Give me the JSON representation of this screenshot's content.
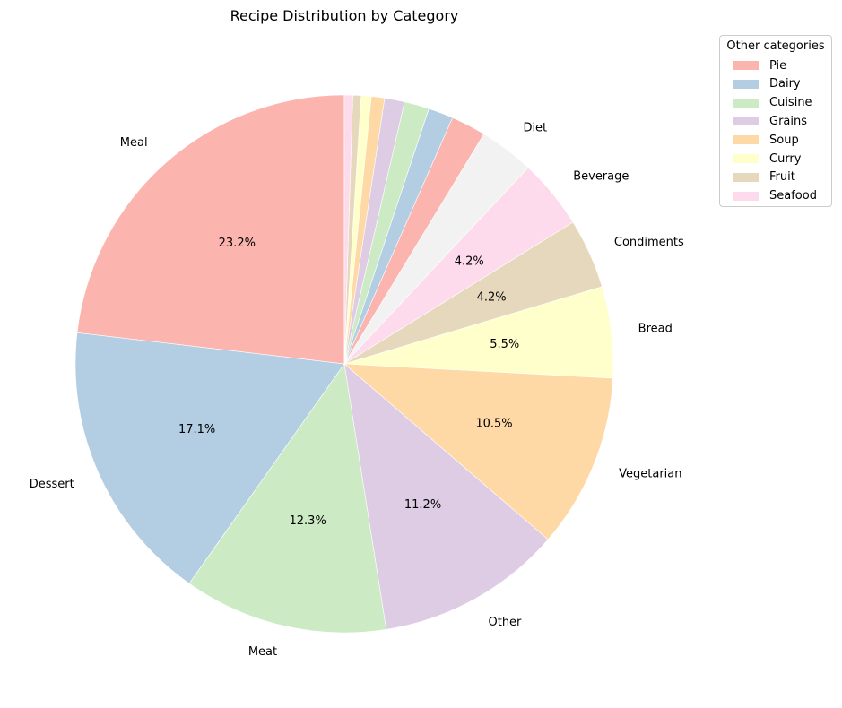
{
  "chart_data": {
    "type": "pie",
    "title": "Recipe Distribution by Category",
    "slices": [
      {
        "label": "Meal",
        "value": 23.2,
        "pct_label": "23.2%",
        "color": "#fbb4ae"
      },
      {
        "label": "Dessert",
        "value": 17.1,
        "pct_label": "17.1%",
        "color": "#b3cde3"
      },
      {
        "label": "Meat",
        "value": 12.3,
        "pct_label": "12.3%",
        "color": "#ccebc5"
      },
      {
        "label": "Other",
        "value": 11.2,
        "pct_label": "11.2%",
        "color": "#decbe4"
      },
      {
        "label": "Vegetarian",
        "value": 10.5,
        "pct_label": "10.5%",
        "color": "#fed9a6"
      },
      {
        "label": "Bread",
        "value": 5.5,
        "pct_label": "5.5%",
        "color": "#ffffcc"
      },
      {
        "label": "Condiments",
        "value": 4.2,
        "pct_label": "4.2%",
        "color": "#e5d8bd"
      },
      {
        "label": "Beverage",
        "value": 4.2,
        "pct_label": "4.2%",
        "color": "#fddaec"
      },
      {
        "label": "Diet",
        "value": 3.3,
        "pct_label": "",
        "color": "#f2f2f2"
      },
      {
        "label": "",
        "value": 2.1,
        "pct_label": "",
        "color": "#fbb4ae"
      },
      {
        "label": "",
        "value": 1.5,
        "pct_label": "",
        "color": "#b3cde3"
      },
      {
        "label": "",
        "value": 1.5,
        "pct_label": "",
        "color": "#ccebc5"
      },
      {
        "label": "",
        "value": 1.2,
        "pct_label": "",
        "color": "#decbe4"
      },
      {
        "label": "",
        "value": 0.8,
        "pct_label": "",
        "color": "#fed9a6"
      },
      {
        "label": "",
        "value": 0.6,
        "pct_label": "",
        "color": "#ffffcc"
      },
      {
        "label": "",
        "value": 0.5,
        "pct_label": "",
        "color": "#e5d8bd"
      },
      {
        "label": "",
        "value": 0.5,
        "pct_label": "",
        "color": "#fddaec"
      }
    ],
    "legend": {
      "title": "Other categories",
      "placement": "top-right outside",
      "items": [
        {
          "label": "Pie",
          "color": "#fbb4ae"
        },
        {
          "label": "Dairy",
          "color": "#b3cde3"
        },
        {
          "label": "Cuisine",
          "color": "#ccebc5"
        },
        {
          "label": "Grains",
          "color": "#decbe4"
        },
        {
          "label": "Soup",
          "color": "#fed9a6"
        },
        {
          "label": "Curry",
          "color": "#ffffcc"
        },
        {
          "label": "Fruit",
          "color": "#e5d8bd"
        },
        {
          "label": "Seafood",
          "color": "#fddaec"
        }
      ]
    },
    "start_angle_deg": 90,
    "direction": "counterclockwise"
  }
}
